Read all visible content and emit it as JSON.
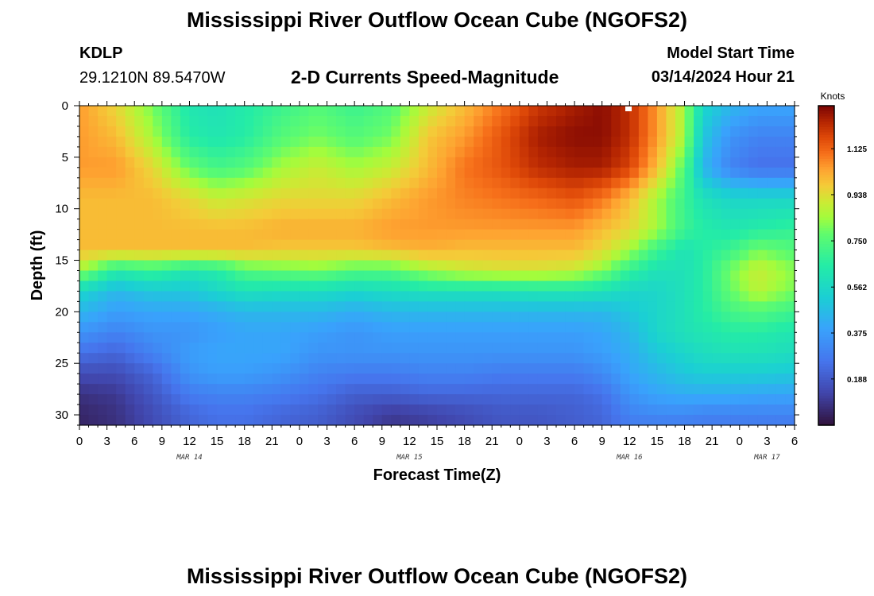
{
  "header": {
    "title": "Mississippi River Outflow Ocean Cube (NGOFS2)",
    "station": "KDLP",
    "coords": "29.1210N  89.5470W",
    "subtitle": "2-D Currents Speed-Magnitude",
    "model_start_label": "Model Start Time",
    "model_start_value": "03/14/2024 Hour 21"
  },
  "footer": {
    "title": "Mississippi River Outflow Ocean Cube (NGOFS2)"
  },
  "chart_data": {
    "type": "heatmap",
    "title": "2-D Currents Speed-Magnitude",
    "xlabel": "Forecast Time(Z)",
    "ylabel": "Depth (ft)",
    "x_start_hour": 0,
    "x_end_hour": 78,
    "x_ticks": [
      {
        "h": 0,
        "label": "0"
      },
      {
        "h": 3,
        "label": "3"
      },
      {
        "h": 6,
        "label": "6"
      },
      {
        "h": 9,
        "label": "9"
      },
      {
        "h": 12,
        "label": "12"
      },
      {
        "h": 15,
        "label": "15"
      },
      {
        "h": 18,
        "label": "18"
      },
      {
        "h": 21,
        "label": "21"
      },
      {
        "h": 24,
        "label": "0"
      },
      {
        "h": 27,
        "label": "3"
      },
      {
        "h": 30,
        "label": "6"
      },
      {
        "h": 33,
        "label": "9"
      },
      {
        "h": 36,
        "label": "12"
      },
      {
        "h": 39,
        "label": "15"
      },
      {
        "h": 42,
        "label": "18"
      },
      {
        "h": 45,
        "label": "21"
      },
      {
        "h": 48,
        "label": "0"
      },
      {
        "h": 51,
        "label": "3"
      },
      {
        "h": 54,
        "label": "6"
      },
      {
        "h": 57,
        "label": "9"
      },
      {
        "h": 60,
        "label": "12"
      },
      {
        "h": 63,
        "label": "15"
      },
      {
        "h": 66,
        "label": "18"
      },
      {
        "h": 69,
        "label": "21"
      },
      {
        "h": 72,
        "label": "0"
      },
      {
        "h": 75,
        "label": "3"
      },
      {
        "h": 78,
        "label": "6"
      }
    ],
    "date_labels": [
      {
        "h": 12,
        "label": "MAR 14"
      },
      {
        "h": 36,
        "label": "MAR 15"
      },
      {
        "h": 60,
        "label": "MAR 16"
      },
      {
        "h": 75,
        "label": "MAR 17"
      }
    ],
    "ylim": [
      0,
      31
    ],
    "y_ticks": [
      0,
      5,
      10,
      15,
      20,
      25,
      30
    ],
    "colorbar": {
      "label": "Knots",
      "vmin": 0.0,
      "vmax": 1.3,
      "ticks": [
        "0.188",
        "0.375",
        "0.562",
        "0.750",
        "0.938",
        "1.125"
      ]
    },
    "depths_ft": [
      0,
      3,
      6,
      9,
      12,
      14,
      16,
      18,
      20,
      22,
      24,
      26,
      28,
      30,
      31
    ],
    "time_hours": [
      0,
      4,
      8,
      12,
      15,
      18,
      22,
      26,
      30,
      34,
      38,
      42,
      46,
      50,
      54,
      57,
      60,
      63,
      66,
      68,
      71,
      74,
      78
    ],
    "values_knots": [
      [
        1.05,
        0.95,
        0.8,
        0.62,
        0.6,
        0.64,
        0.7,
        0.75,
        0.7,
        0.75,
        0.9,
        1.0,
        1.1,
        1.2,
        1.25,
        1.28,
        1.22,
        1.05,
        0.85,
        0.55,
        0.45,
        0.4,
        0.4
      ],
      [
        1.05,
        1.0,
        0.85,
        0.65,
        0.62,
        0.65,
        0.75,
        0.8,
        0.75,
        0.8,
        0.98,
        1.05,
        1.15,
        1.25,
        1.28,
        1.28,
        1.22,
        1.05,
        0.85,
        0.5,
        0.35,
        0.3,
        0.3
      ],
      [
        1.05,
        1.05,
        0.95,
        0.78,
        0.72,
        0.75,
        0.85,
        0.9,
        0.85,
        0.9,
        1.0,
        1.1,
        1.15,
        1.22,
        1.25,
        1.25,
        1.18,
        1.0,
        0.75,
        0.45,
        0.3,
        0.25,
        0.25
      ],
      [
        1.0,
        1.0,
        1.0,
        0.95,
        0.9,
        0.92,
        0.95,
        0.95,
        0.95,
        1.0,
        1.05,
        1.08,
        1.1,
        1.12,
        1.15,
        1.1,
        1.0,
        0.85,
        0.7,
        0.6,
        0.55,
        0.55,
        0.55
      ],
      [
        1.0,
        1.0,
        1.0,
        1.0,
        1.0,
        1.0,
        1.02,
        1.02,
        1.02,
        1.05,
        1.05,
        1.05,
        1.05,
        1.05,
        1.05,
        1.0,
        0.95,
        0.85,
        0.7,
        0.65,
        0.62,
        0.65,
        0.68
      ],
      [
        1.0,
        1.0,
        1.0,
        1.0,
        1.0,
        1.0,
        0.98,
        0.98,
        0.98,
        1.0,
        1.02,
        1.0,
        1.0,
        1.0,
        1.0,
        0.95,
        0.85,
        0.7,
        0.6,
        0.65,
        0.7,
        0.8,
        0.75
      ],
      [
        0.85,
        0.65,
        0.7,
        0.62,
        0.65,
        0.75,
        0.78,
        0.8,
        0.75,
        0.75,
        0.85,
        0.9,
        0.92,
        0.92,
        0.9,
        0.82,
        0.68,
        0.6,
        0.6,
        0.65,
        0.8,
        0.9,
        0.82
      ],
      [
        0.55,
        0.45,
        0.5,
        0.5,
        0.55,
        0.6,
        0.58,
        0.58,
        0.55,
        0.58,
        0.6,
        0.6,
        0.6,
        0.62,
        0.62,
        0.6,
        0.55,
        0.55,
        0.6,
        0.65,
        0.78,
        0.88,
        0.8
      ],
      [
        0.45,
        0.38,
        0.4,
        0.4,
        0.42,
        0.45,
        0.45,
        0.45,
        0.42,
        0.45,
        0.45,
        0.45,
        0.45,
        0.45,
        0.45,
        0.45,
        0.5,
        0.55,
        0.6,
        0.65,
        0.72,
        0.75,
        0.7
      ],
      [
        0.35,
        0.3,
        0.35,
        0.35,
        0.38,
        0.4,
        0.4,
        0.38,
        0.35,
        0.38,
        0.38,
        0.38,
        0.38,
        0.38,
        0.38,
        0.4,
        0.45,
        0.55,
        0.6,
        0.62,
        0.65,
        0.65,
        0.62
      ],
      [
        0.25,
        0.22,
        0.3,
        0.38,
        0.4,
        0.4,
        0.4,
        0.35,
        0.35,
        0.35,
        0.35,
        0.35,
        0.35,
        0.35,
        0.35,
        0.38,
        0.42,
        0.5,
        0.55,
        0.58,
        0.6,
        0.6,
        0.58
      ],
      [
        0.15,
        0.15,
        0.22,
        0.35,
        0.38,
        0.38,
        0.35,
        0.3,
        0.28,
        0.28,
        0.3,
        0.3,
        0.28,
        0.28,
        0.28,
        0.32,
        0.4,
        0.45,
        0.5,
        0.52,
        0.52,
        0.52,
        0.5
      ],
      [
        0.08,
        0.1,
        0.18,
        0.28,
        0.3,
        0.3,
        0.28,
        0.25,
        0.2,
        0.2,
        0.22,
        0.22,
        0.22,
        0.22,
        0.22,
        0.25,
        0.35,
        0.4,
        0.42,
        0.42,
        0.42,
        0.4,
        0.4
      ],
      [
        0.05,
        0.08,
        0.15,
        0.22,
        0.25,
        0.25,
        0.22,
        0.2,
        0.15,
        0.1,
        0.12,
        0.15,
        0.18,
        0.18,
        0.2,
        0.22,
        0.3,
        0.32,
        0.32,
        0.3,
        0.3,
        0.3,
        0.3
      ],
      [
        0.05,
        0.08,
        0.15,
        0.22,
        0.25,
        0.25,
        0.22,
        0.2,
        0.15,
        0.1,
        0.12,
        0.15,
        0.18,
        0.18,
        0.2,
        0.22,
        0.28,
        0.28,
        0.28,
        0.28,
        0.28,
        0.28,
        0.28
      ]
    ]
  }
}
